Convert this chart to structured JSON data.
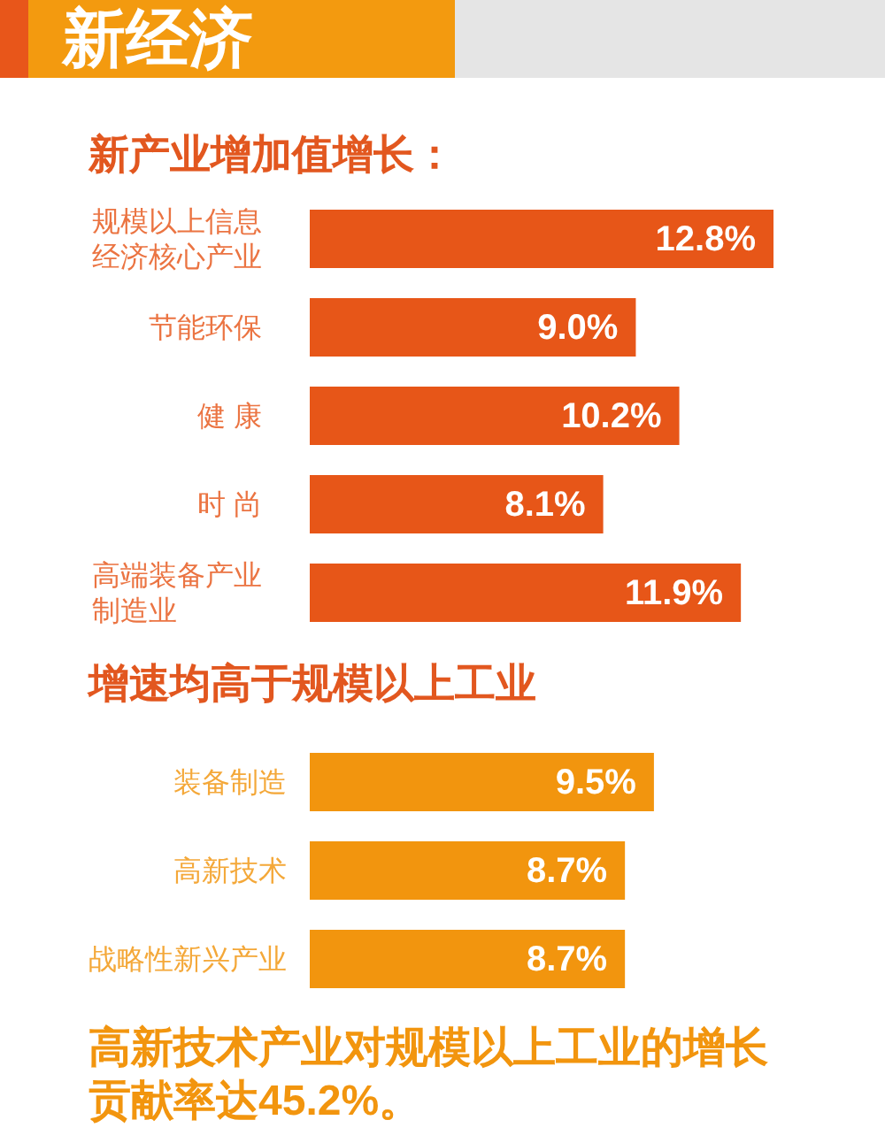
{
  "chart_data": [
    {
      "type": "bar",
      "orientation": "horizontal",
      "title": "新经济",
      "subtitle": "新产业增加值增长：",
      "categories": [
        "规模以上信息经济核心产业",
        "节能环保",
        "健 康",
        "时 尚",
        "高端装备产业制造业"
      ],
      "values": [
        12.8,
        9.0,
        10.2,
        8.1,
        11.9
      ],
      "value_labels": [
        "12.8%",
        "9.0%",
        "10.2%",
        "8.1%",
        "11.9%"
      ],
      "color": "#e75618",
      "tick_labels": "y"
    },
    {
      "type": "bar",
      "orientation": "horizontal",
      "title": "增速均高于规模以上工业",
      "categories": [
        "装备制造",
        "高新技术",
        "战略性新兴产业"
      ],
      "values": [
        9.5,
        8.7,
        8.7
      ],
      "value_labels": [
        "9.5%",
        "8.7%",
        "8.7%"
      ],
      "color": "#f2950e",
      "tick_labels": "y",
      "annotations": [
        "高新技术产业对规模以上工业的增长贡献率达45.2%。"
      ]
    }
  ]
}
